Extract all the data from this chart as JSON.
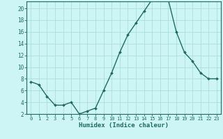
{
  "x": [
    0,
    1,
    2,
    3,
    4,
    5,
    6,
    7,
    8,
    9,
    10,
    11,
    12,
    13,
    14,
    15,
    16,
    17,
    18,
    19,
    20,
    21,
    22,
    23
  ],
  "y": [
    7.5,
    7.0,
    5.0,
    3.5,
    3.5,
    4.0,
    2.0,
    2.5,
    3.0,
    6.0,
    9.0,
    12.5,
    15.5,
    17.5,
    19.5,
    21.5,
    22.0,
    21.5,
    16.0,
    12.5,
    11.0,
    9.0,
    8.0,
    8.0
  ],
  "ylim": [
    2,
    21
  ],
  "yticks": [
    2,
    4,
    6,
    8,
    10,
    12,
    14,
    16,
    18,
    20
  ],
  "xticks": [
    0,
    1,
    2,
    3,
    4,
    5,
    6,
    7,
    8,
    9,
    10,
    11,
    12,
    13,
    14,
    15,
    16,
    17,
    18,
    19,
    20,
    21,
    22,
    23
  ],
  "xlabel": "Humidex (Indice chaleur)",
  "line_color": "#1e6b5e",
  "marker_color": "#1e6b5e",
  "bg_color": "#cef5f5",
  "grid_color": "#aadede",
  "axis_color": "#1e6b5e",
  "label_color": "#1e6b5e"
}
